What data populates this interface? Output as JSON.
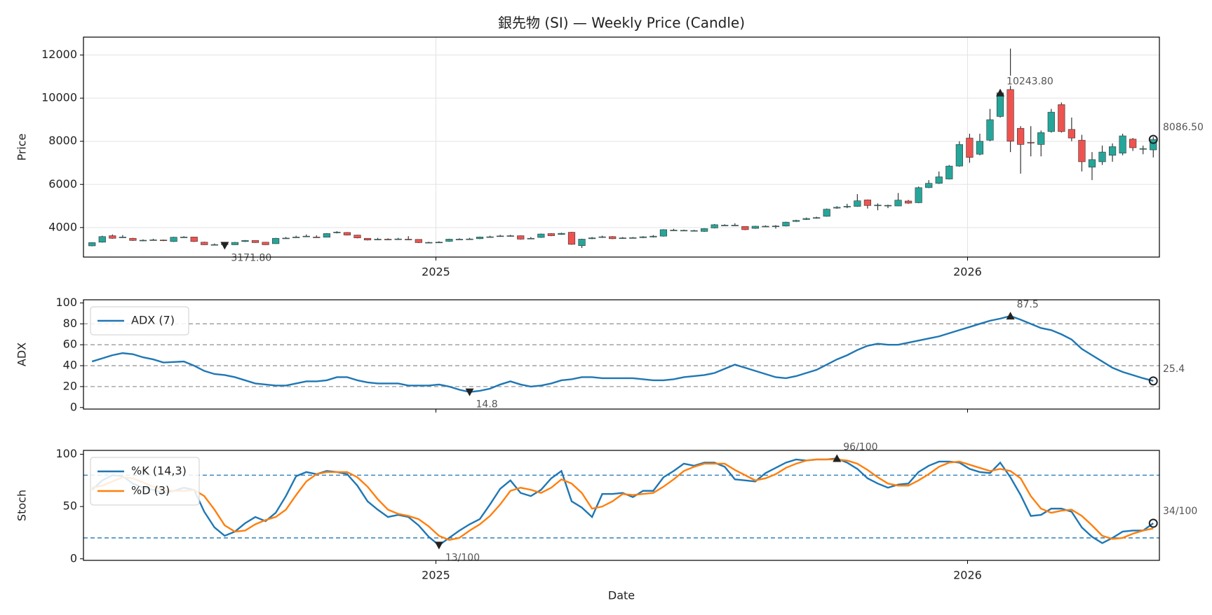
{
  "chart_data": [
    {
      "type": "candlestick",
      "title": "銀先物 (SI) — Weekly Price (Candle)",
      "ylabel": "Price",
      "up_color": "#26a69a",
      "down_color": "#ef5350",
      "grid": true,
      "xlim": [
        -0.84,
        104.6
      ],
      "xticks": [
        {
          "value": 33.7,
          "label": "2025"
        },
        {
          "value": 85.8,
          "label": "2026"
        }
      ],
      "ylim": [
        2630,
        12830
      ],
      "yticks": [
        4000,
        6000,
        8000,
        10000,
        12000
      ],
      "open": [
        3150,
        3320,
        3620,
        3550,
        3500,
        3400,
        3420,
        3420,
        3350,
        3550,
        3560,
        3320,
        3200,
        3240,
        3200,
        3350,
        3400,
        3320,
        3250,
        3500,
        3540,
        3580,
        3560,
        3550,
        3760,
        3770,
        3650,
        3500,
        3450,
        3460,
        3450,
        3460,
        3450,
        3300,
        3300,
        3360,
        3450,
        3460,
        3480,
        3560,
        3600,
        3600,
        3620,
        3480,
        3540,
        3720,
        3680,
        3780,
        3160,
        3480,
        3540,
        3580,
        3500,
        3520,
        3530,
        3560,
        3600,
        3870,
        3860,
        3850,
        3820,
        3980,
        4100,
        4100,
        4050,
        3960,
        4050,
        4040,
        4070,
        4280,
        4370,
        4430,
        4520,
        4900,
        4950,
        4980,
        5280,
        5030,
        5020,
        5000,
        5230,
        5150,
        5850,
        6050,
        6250,
        6850,
        8150,
        7400,
        8050,
        9150,
        10400,
        8600,
        7950,
        7850,
        8450,
        9700,
        8550,
        8050,
        6800,
        7050,
        7350,
        7450,
        8100,
        7650,
        7600
      ],
      "high": [
        3320,
        3620,
        3680,
        3650,
        3520,
        3450,
        3480,
        3440,
        3570,
        3600,
        3570,
        3340,
        3260,
        3280,
        3330,
        3420,
        3410,
        3330,
        3520,
        3560,
        3620,
        3680,
        3640,
        3740,
        3830,
        3790,
        3660,
        3510,
        3520,
        3500,
        3520,
        3600,
        3460,
        3340,
        3360,
        3480,
        3500,
        3520,
        3580,
        3620,
        3660,
        3660,
        3630,
        3560,
        3720,
        3740,
        3760,
        3800,
        3480,
        3560,
        3620,
        3600,
        3560,
        3560,
        3600,
        3650,
        3920,
        3940,
        3900,
        3890,
        3970,
        4160,
        4150,
        4200,
        4060,
        4080,
        4100,
        4110,
        4270,
        4360,
        4460,
        4500,
        4880,
        4990,
        5100,
        5550,
        5300,
        5120,
        5060,
        5600,
        5280,
        5900,
        6200,
        6600,
        6900,
        8000,
        8350,
        8350,
        9500,
        10400,
        12300,
        8700,
        8700,
        8500,
        9500,
        9800,
        9100,
        8300,
        7500,
        7800,
        7900,
        8350,
        8150,
        7800,
        8200
      ],
      "low": [
        3130,
        3300,
        3480,
        3520,
        3380,
        3370,
        3400,
        3370,
        3330,
        3530,
        3330,
        3190,
        3180,
        3171.8,
        3190,
        3330,
        3290,
        3190,
        3240,
        3480,
        3520,
        3560,
        3520,
        3540,
        3730,
        3630,
        3500,
        3400,
        3420,
        3420,
        3430,
        3420,
        3280,
        3280,
        3280,
        3340,
        3430,
        3440,
        3460,
        3540,
        3580,
        3580,
        3440,
        3460,
        3520,
        3600,
        3660,
        3200,
        3050,
        3460,
        3520,
        3460,
        3480,
        3490,
        3510,
        3540,
        3580,
        3850,
        3840,
        3820,
        3800,
        3960,
        4080,
        4080,
        3880,
        3940,
        4030,
        3950,
        4050,
        4260,
        4350,
        4410,
        4500,
        4870,
        4900,
        4960,
        4880,
        4800,
        4900,
        4990,
        5100,
        5130,
        5830,
        6020,
        6230,
        6820,
        7000,
        7350,
        8000,
        9100,
        7500,
        6500,
        7300,
        7300,
        8400,
        8400,
        8000,
        6600,
        6200,
        6900,
        7050,
        7350,
        7550,
        7400,
        7250
      ],
      "close": [
        3300,
        3580,
        3500,
        3560,
        3400,
        3410,
        3430,
        3400,
        3550,
        3560,
        3350,
        3200,
        3210,
        3230,
        3310,
        3400,
        3300,
        3200,
        3500,
        3510,
        3560,
        3600,
        3550,
        3720,
        3790,
        3650,
        3520,
        3420,
        3460,
        3450,
        3470,
        3440,
        3300,
        3310,
        3320,
        3460,
        3460,
        3470,
        3560,
        3570,
        3610,
        3620,
        3460,
        3500,
        3700,
        3620,
        3730,
        3220,
        3460,
        3520,
        3570,
        3480,
        3520,
        3530,
        3570,
        3600,
        3900,
        3880,
        3870,
        3860,
        3950,
        4130,
        4110,
        4110,
        3900,
        4060,
        4060,
        4070,
        4250,
        4330,
        4420,
        4460,
        4850,
        4940,
        4980,
        5240,
        5020,
        5040,
        5030,
        5270,
        5130,
        5850,
        6050,
        6350,
        6850,
        7850,
        7250,
        8000,
        9000,
        10243.8,
        8000,
        7850,
        7920,
        8400,
        9350,
        8450,
        8150,
        7050,
        7150,
        7500,
        7750,
        8250,
        7700,
        7660,
        8086.5
      ],
      "annotations": [
        {
          "kind": "min",
          "x": 13,
          "value": 3171.8,
          "label": "3171.80"
        },
        {
          "kind": "max",
          "x": 89,
          "value": 10243.8,
          "label": "10243.80"
        },
        {
          "kind": "last",
          "x": 104,
          "value": 8086.5,
          "label": "8086.50"
        }
      ]
    },
    {
      "type": "line",
      "ylabel": "ADX",
      "legend": "upper left",
      "xlim": [
        -0.84,
        104.6
      ],
      "ylim": [
        -1.5,
        103
      ],
      "yticks": [
        0,
        20,
        40,
        60,
        80,
        100
      ],
      "hlines": [
        20,
        40,
        60,
        80
      ],
      "hline_color": "#999999",
      "series": [
        {
          "name": "ADX (7)",
          "color": "#1f77b4",
          "values": [
            44,
            47,
            50,
            52,
            51,
            48,
            46,
            43,
            43.5,
            44,
            40,
            35,
            32,
            31,
            29,
            26,
            23,
            22,
            21,
            21,
            23,
            25,
            25,
            26,
            29,
            29,
            26,
            24,
            23,
            23,
            23,
            21,
            21,
            21,
            22,
            20,
            17,
            14.8,
            16,
            18,
            22,
            25,
            22,
            20,
            21,
            23,
            26,
            27,
            29,
            29,
            28,
            28,
            28,
            28,
            27,
            26,
            26,
            27,
            29,
            30,
            31,
            33,
            37,
            41,
            38,
            35,
            32,
            29,
            28,
            30,
            33,
            36,
            41,
            46,
            50,
            55,
            59,
            61,
            60,
            60,
            62,
            64,
            66,
            68,
            71,
            74,
            77,
            80,
            83,
            85,
            87.5,
            84,
            80,
            76,
            74,
            70,
            65,
            56,
            50,
            44,
            38,
            34,
            31,
            28,
            25.4
          ]
        }
      ],
      "annotations": [
        {
          "kind": "min",
          "x": 37,
          "value": 14.8,
          "label": "14.8"
        },
        {
          "kind": "max",
          "x": 90,
          "value": 87.5,
          "label": "87.5"
        },
        {
          "kind": "last",
          "x": 104,
          "value": 25.4,
          "label": "25.4"
        }
      ]
    },
    {
      "type": "line",
      "ylabel": "Stoch",
      "xlabel": "Date",
      "legend": "upper left",
      "xlim": [
        -0.84,
        104.6
      ],
      "xticks": [
        {
          "value": 33.7,
          "label": "2025"
        },
        {
          "value": 85.8,
          "label": "2026"
        }
      ],
      "ylim": [
        -1.5,
        103.7
      ],
      "yticks": [
        0,
        50,
        100
      ],
      "hlines": [
        20,
        80
      ],
      "hline_color": "#1f77b4",
      "series": [
        {
          "name": "%K (14,3)",
          "color": "#1f77b4",
          "values": [
            66,
            75,
            80,
            79,
            72,
            68,
            66,
            63,
            65,
            68,
            66,
            45,
            30,
            22,
            26,
            34,
            40,
            36,
            44,
            60,
            79,
            83,
            81,
            84,
            83,
            81,
            70,
            55,
            47,
            40,
            42,
            40,
            32,
            21,
            13,
            20,
            27,
            33,
            38,
            52,
            67,
            75,
            63,
            60,
            66,
            77,
            84,
            55,
            49,
            40,
            62,
            62,
            63,
            59,
            65,
            65,
            78,
            84,
            91,
            89,
            92,
            92,
            88,
            76,
            75,
            74,
            82,
            87,
            92,
            95,
            94,
            95,
            95,
            96,
            92,
            86,
            77,
            72,
            68,
            71,
            72,
            83,
            89,
            93,
            93,
            92,
            86,
            83,
            82,
            92,
            78,
            61,
            41,
            42,
            48,
            48,
            45,
            30,
            21,
            15,
            20,
            26,
            27,
            27,
            34
          ]
        },
        {
          "name": "%D (3)",
          "color": "#ff7f0e",
          "values": [
            68,
            70,
            74,
            78,
            77,
            73,
            69,
            66,
            65,
            65,
            66,
            60,
            47,
            32,
            26,
            27,
            33,
            37,
            40,
            47,
            61,
            74,
            81,
            83,
            83,
            83,
            78,
            69,
            57,
            47,
            43,
            41,
            38,
            31,
            22,
            18,
            20,
            27,
            33,
            41,
            52,
            65,
            68,
            66,
            63,
            68,
            76,
            72,
            63,
            48,
            50,
            55,
            62,
            61,
            62,
            63,
            69,
            76,
            84,
            88,
            91,
            91,
            91,
            85,
            80,
            75,
            77,
            81,
            87,
            91,
            94,
            95,
            95,
            95,
            94,
            91,
            85,
            78,
            72,
            70,
            70,
            75,
            81,
            88,
            92,
            93,
            90,
            87,
            84,
            86,
            84,
            77,
            60,
            48,
            44,
            46,
            47,
            41,
            32,
            22,
            19,
            20,
            24,
            27,
            29
          ]
        }
      ],
      "annotations": [
        {
          "kind": "min",
          "x": 34,
          "value": 13,
          "label": "13/100"
        },
        {
          "kind": "max",
          "x": 73,
          "value": 96,
          "label": "96/100"
        },
        {
          "kind": "last",
          "x": 104,
          "value": 34,
          "label": "34/100"
        }
      ]
    }
  ]
}
